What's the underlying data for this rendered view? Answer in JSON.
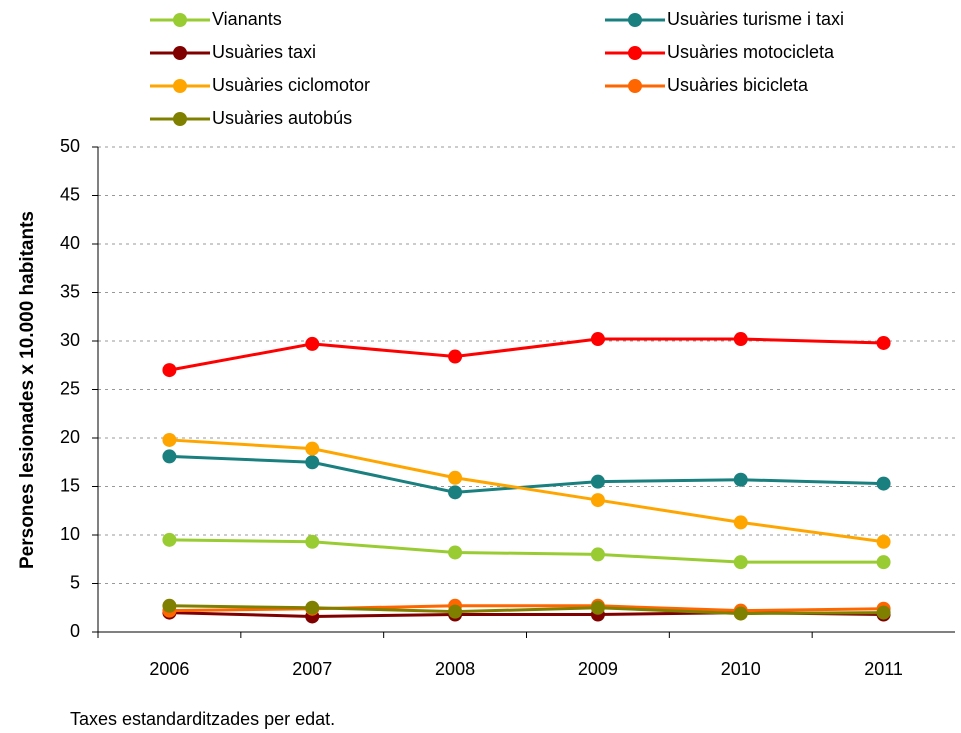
{
  "chart_data": {
    "type": "line",
    "y_label": "Persones lesionades x 10.000 habitants",
    "note": "Taxes estandarditzades per edat.",
    "categories": [
      "2006",
      "2007",
      "2008",
      "2009",
      "2010",
      "2011"
    ],
    "series": [
      {
        "name": "Vianants",
        "color": "#99cc33",
        "values": [
          9.5,
          9.3,
          8.2,
          8.0,
          7.2,
          7.2
        ]
      },
      {
        "name": "Usuàries turisme i taxi",
        "color": "#1a7f7f",
        "values": [
          18.1,
          17.5,
          14.4,
          15.5,
          15.7,
          15.3
        ]
      },
      {
        "name": "Usuàries taxi",
        "color": "#800000",
        "values": [
          2.0,
          1.6,
          1.8,
          1.8,
          2.0,
          1.8
        ]
      },
      {
        "name": "Usuàries motocicleta",
        "color": "#ff0000",
        "values": [
          27.0,
          29.7,
          28.4,
          30.2,
          30.2,
          29.8
        ]
      },
      {
        "name": "Usuàries ciclomotor",
        "color": "#ffa500",
        "values": [
          19.8,
          18.9,
          15.9,
          13.6,
          11.3,
          9.3
        ]
      },
      {
        "name": "Usuàries bicicleta",
        "color": "#ff6600",
        "values": [
          2.2,
          2.4,
          2.7,
          2.7,
          2.2,
          2.4
        ]
      },
      {
        "name": "Usuàries autobús",
        "color": "#808000",
        "values": [
          2.7,
          2.5,
          2.1,
          2.5,
          1.9,
          2.0
        ]
      }
    ],
    "ylim": [
      0,
      50
    ],
    "yticks": [
      0,
      5,
      10,
      15,
      20,
      25,
      30,
      35,
      40,
      45,
      50
    ],
    "grid": true
  }
}
